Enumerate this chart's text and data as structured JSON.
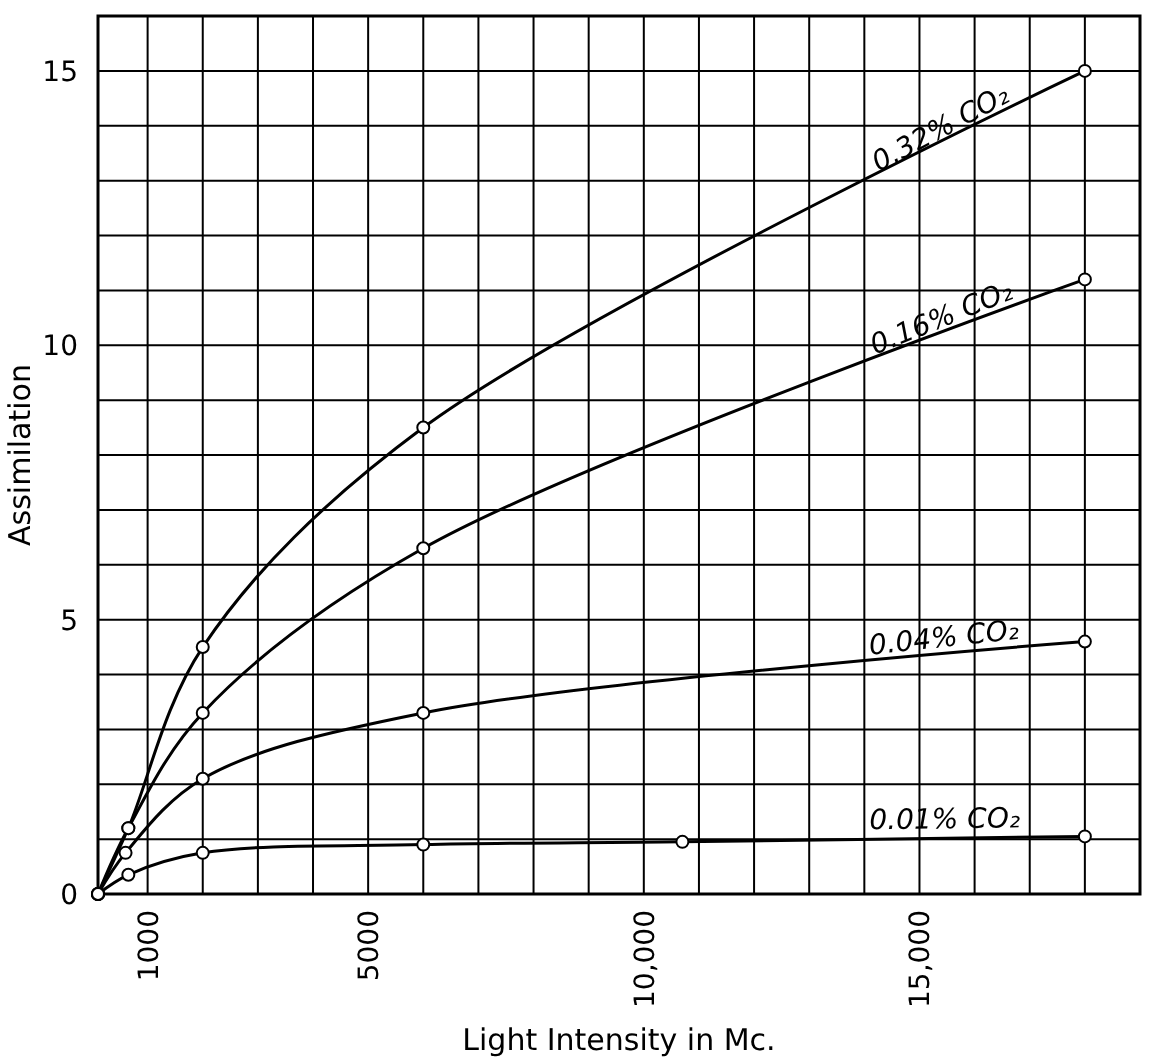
{
  "chart_data": {
    "type": "line",
    "xlabel": "Light Intensity in Mc.",
    "ylabel": "Assimilation",
    "xlim": [
      100,
      19000
    ],
    "ylim": [
      0,
      16
    ],
    "xticks": [
      1000,
      {
        "value": 2000,
        "label": null
      },
      {
        "value": 3000,
        "label": null
      },
      {
        "value": 4000,
        "label": null
      },
      5000,
      {
        "value": 6000,
        "label": null
      },
      {
        "value": 7000,
        "label": null
      },
      {
        "value": 8000,
        "label": null
      },
      {
        "value": 9000,
        "label": null
      },
      {
        "value": 10000,
        "label": "10,000"
      },
      {
        "value": 11000,
        "label": null
      },
      {
        "value": 12000,
        "label": null
      },
      {
        "value": 13000,
        "label": null
      },
      {
        "value": 14000,
        "label": null
      },
      {
        "value": 15000,
        "label": "15,000"
      },
      {
        "value": 16000,
        "label": null
      },
      {
        "value": 17000,
        "label": null
      },
      {
        "value": 18000,
        "label": null
      },
      {
        "value": 19000,
        "label": null
      }
    ],
    "yticks": [
      0,
      {
        "value": 1,
        "label": null
      },
      {
        "value": 2,
        "label": null
      },
      {
        "value": 3,
        "label": null
      },
      {
        "value": 4,
        "label": null
      },
      5,
      {
        "value": 6,
        "label": null
      },
      {
        "value": 7,
        "label": null
      },
      {
        "value": 8,
        "label": null
      },
      {
        "value": 9,
        "label": null
      },
      10,
      {
        "value": 11,
        "label": null
      },
      {
        "value": 12,
        "label": null
      },
      {
        "value": 13,
        "label": null
      },
      {
        "value": 14,
        "label": null
      },
      15,
      {
        "value": 16,
        "label": null
      }
    ],
    "grid": true,
    "marker": "circle",
    "line_style": "solid",
    "series": [
      {
        "name": "0.32% CO₂",
        "color": "#000000",
        "x": [
          100,
          650,
          2000,
          6000,
          18000
        ],
        "values": [
          0,
          1.2,
          4.5,
          8.5,
          15
        ]
      },
      {
        "name": "0.16% CO₂",
        "color": "#000000",
        "x": [
          100,
          650,
          2000,
          6000,
          18000
        ],
        "values": [
          0,
          1.2,
          3.3,
          6.3,
          11.2
        ]
      },
      {
        "name": "0.04% CO₂",
        "color": "#000000",
        "x": [
          100,
          600,
          2000,
          6000,
          18000
        ],
        "values": [
          0,
          0.75,
          2.1,
          3.3,
          4.6
        ]
      },
      {
        "name": "0.01% CO₂",
        "color": "#000000",
        "x": [
          100,
          650,
          2000,
          6000,
          10700,
          18000
        ],
        "values": [
          0,
          0.35,
          0.75,
          0.9,
          0.95,
          1.05
        ]
      }
    ]
  }
}
